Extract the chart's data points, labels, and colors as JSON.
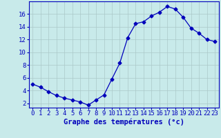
{
  "x": [
    0,
    1,
    2,
    3,
    4,
    5,
    6,
    7,
    8,
    9,
    10,
    11,
    12,
    13,
    14,
    15,
    16,
    17,
    18,
    19,
    20,
    21,
    22,
    23
  ],
  "y": [
    5.0,
    4.5,
    3.8,
    3.2,
    2.8,
    2.5,
    2.2,
    1.7,
    2.5,
    3.3,
    5.8,
    8.3,
    12.3,
    14.5,
    14.8,
    15.7,
    16.3,
    17.2,
    16.8,
    15.5,
    13.8,
    13.0,
    12.0,
    11.7
  ],
  "line_color": "#0000bb",
  "marker": "D",
  "marker_size": 2.5,
  "bg_color": "#c8eaea",
  "grid_color": "#aac8c8",
  "xlabel": "Graphe des températures (°c)",
  "xlabel_color": "#0000bb",
  "xlabel_fontsize": 7.5,
  "tick_color": "#0000bb",
  "tick_fontsize": 6.5,
  "ylim": [
    1.3,
    18.0
  ],
  "yticks": [
    2,
    4,
    6,
    8,
    10,
    12,
    14,
    16
  ],
  "xlim": [
    -0.5,
    23.5
  ]
}
